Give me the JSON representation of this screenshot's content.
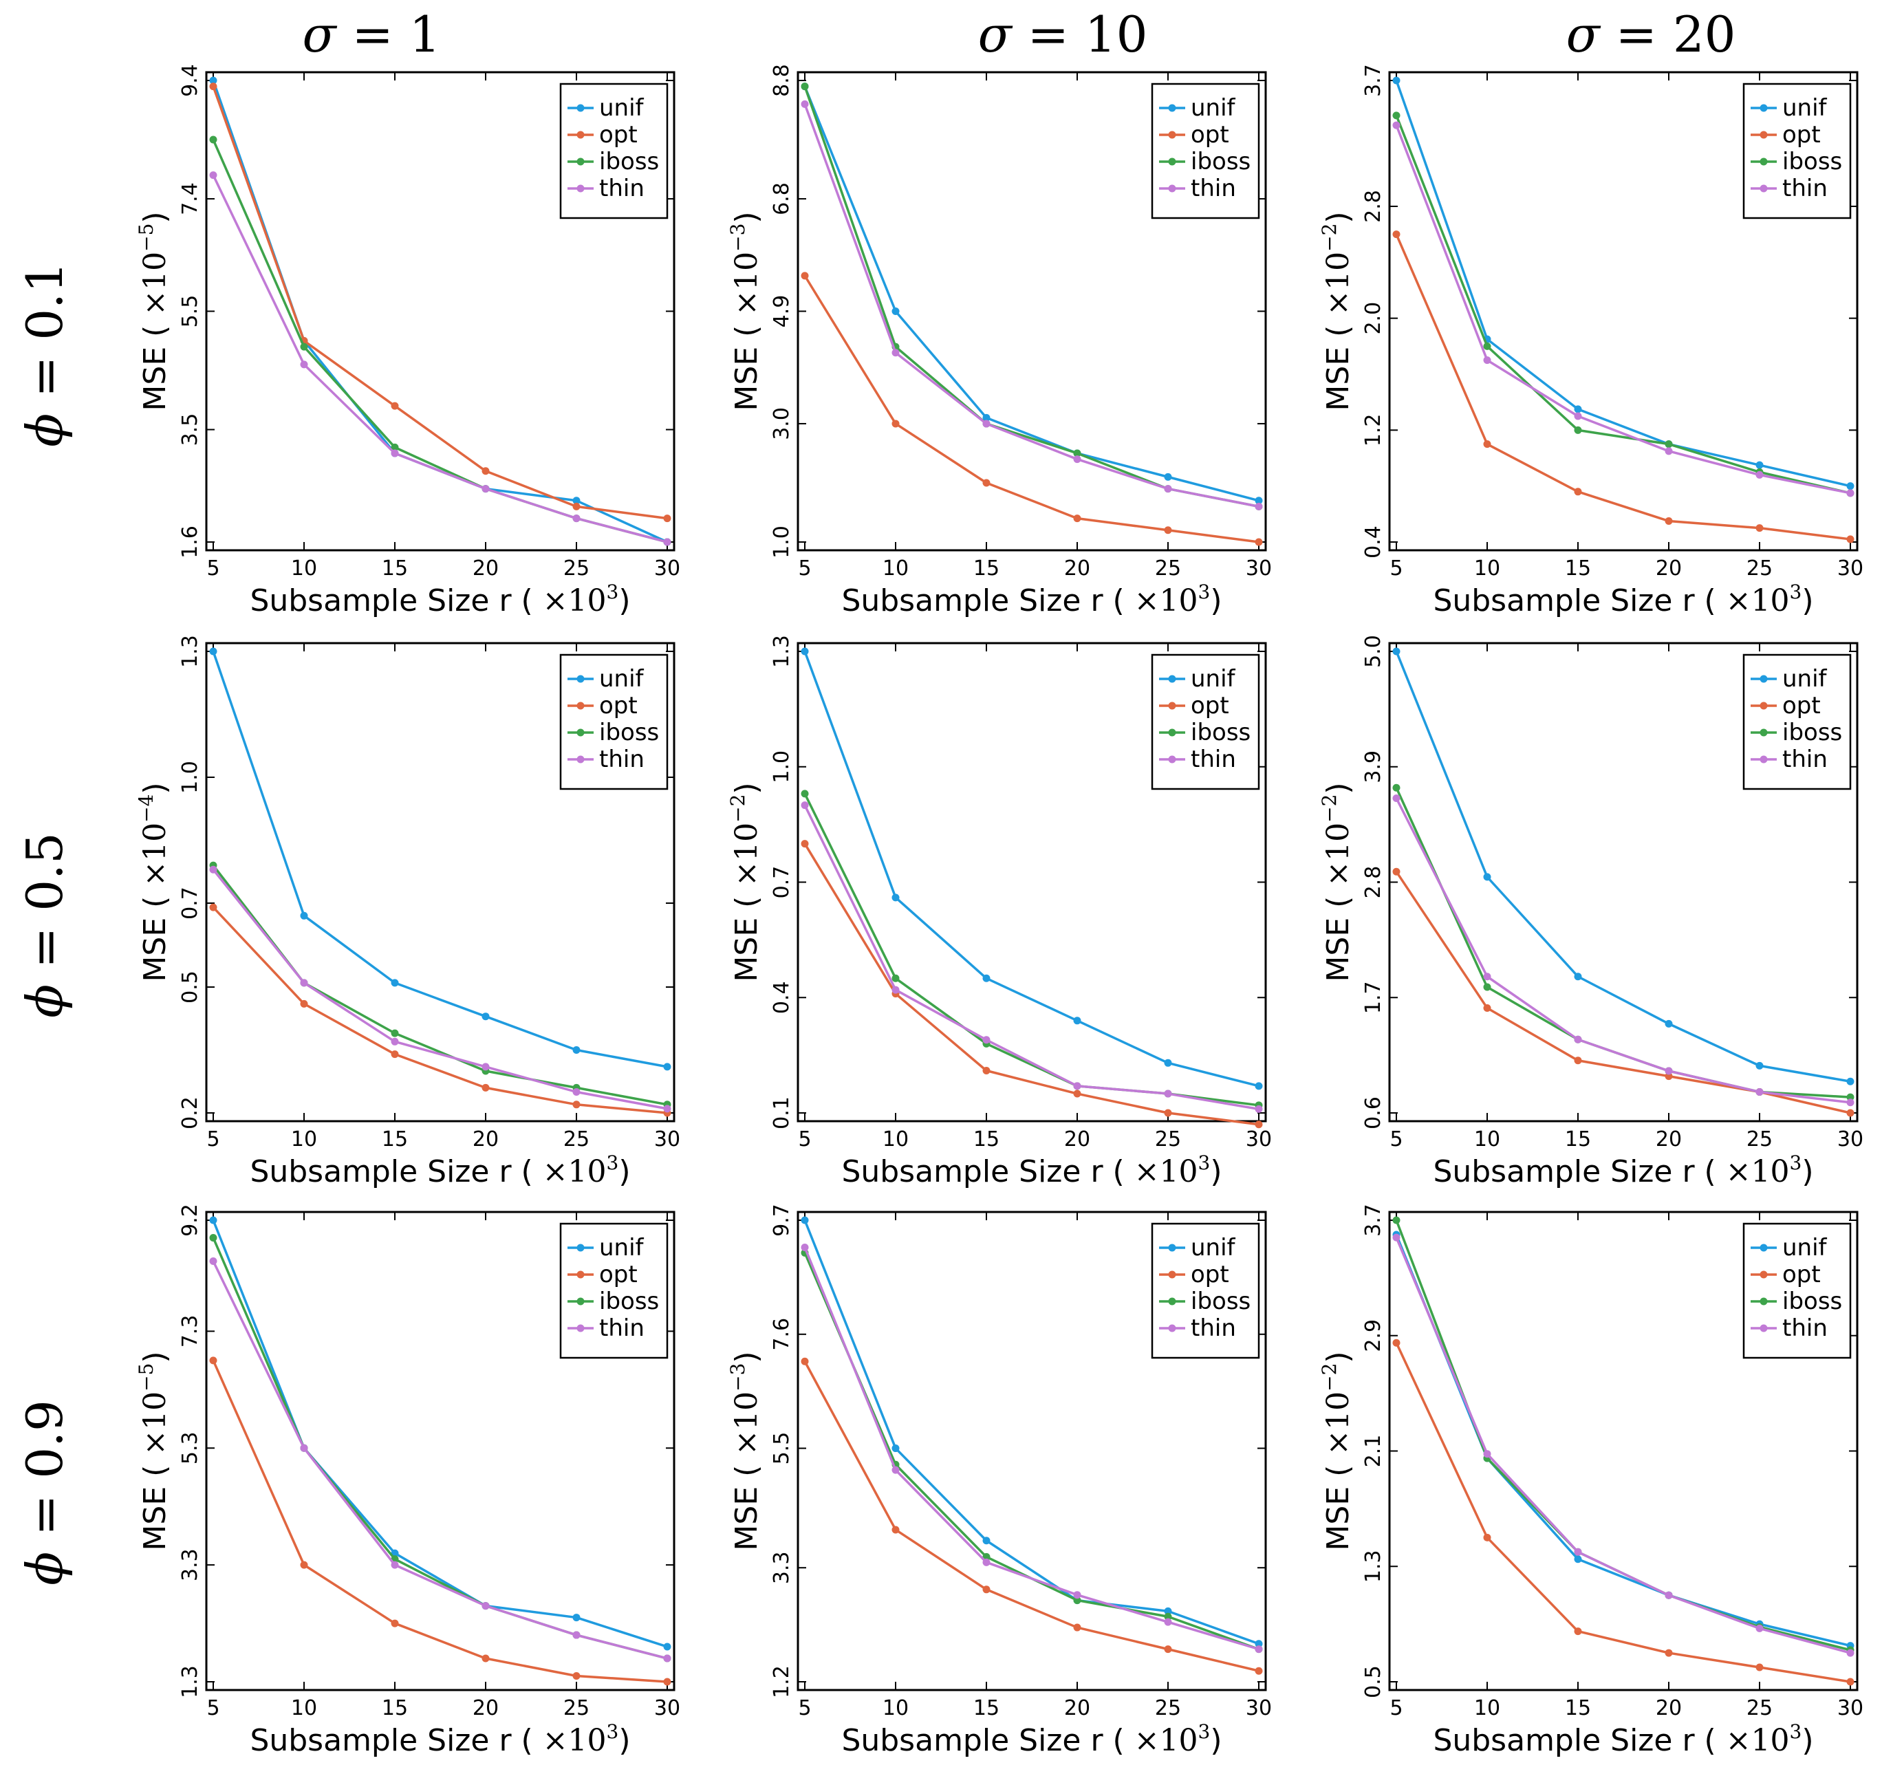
{
  "col_labels": [
    {
      "sym": "σ",
      "rest": " = 1"
    },
    {
      "sym": "σ",
      "rest": " = 10"
    },
    {
      "sym": "σ",
      "rest": " = 20"
    }
  ],
  "row_labels": [
    {
      "sym": "ϕ",
      "rest": " = 0.1"
    },
    {
      "sym": "ϕ",
      "rest": " = 0.5"
    },
    {
      "sym": "ϕ",
      "rest": " = 0.9"
    }
  ],
  "series_colors": {
    "unif": "#1f9bdf",
    "opt": "#e0663f",
    "iboss": "#3da34a",
    "thin": "#c17ad6"
  },
  "legend": [
    "unif",
    "opt",
    "iboss",
    "thin"
  ],
  "chart_data": [
    {
      "type": "line",
      "row": 0,
      "col": 0,
      "xlabel": "Subsample Size r (×10³)",
      "ylabel": "MSE (×10⁻⁵)",
      "ylabel_main": "MSE",
      "ylabel_exp": "-5",
      "x": [
        5,
        10,
        15,
        20,
        25,
        30
      ],
      "xticks": [
        5,
        10,
        15,
        20,
        25,
        30
      ],
      "yticks": [
        "1.6",
        "3.5",
        "5.5",
        "7.4",
        "9.4"
      ],
      "ylim": [
        1.6,
        9.4
      ],
      "series": [
        {
          "name": "unif",
          "values": [
            9.4,
            5.0,
            3.1,
            2.5,
            2.3,
            1.6
          ]
        },
        {
          "name": "opt",
          "values": [
            9.3,
            5.0,
            3.9,
            2.8,
            2.2,
            2.0
          ]
        },
        {
          "name": "iboss",
          "values": [
            8.4,
            4.9,
            3.2,
            2.5,
            2.0,
            1.6
          ]
        },
        {
          "name": "thin",
          "values": [
            7.8,
            4.6,
            3.1,
            2.5,
            2.0,
            1.6
          ]
        }
      ]
    },
    {
      "type": "line",
      "row": 0,
      "col": 1,
      "xlabel": "Subsample Size r (×10³)",
      "ylabel": "MSE (×10⁻³)",
      "ylabel_main": "MSE",
      "ylabel_exp": "-3",
      "x": [
        5,
        10,
        15,
        20,
        25,
        30
      ],
      "xticks": [
        5,
        10,
        15,
        20,
        25,
        30
      ],
      "yticks": [
        "1.0",
        "3.0",
        "4.9",
        "6.8",
        "8.8"
      ],
      "ylim": [
        1.0,
        8.8
      ],
      "series": [
        {
          "name": "unif",
          "values": [
            8.7,
            4.9,
            3.1,
            2.5,
            2.1,
            1.7
          ]
        },
        {
          "name": "opt",
          "values": [
            5.5,
            3.0,
            2.0,
            1.4,
            1.2,
            1.0
          ]
        },
        {
          "name": "iboss",
          "values": [
            8.7,
            4.3,
            3.0,
            2.5,
            1.9,
            1.6
          ]
        },
        {
          "name": "thin",
          "values": [
            8.4,
            4.2,
            3.0,
            2.4,
            1.9,
            1.6
          ]
        }
      ]
    },
    {
      "type": "line",
      "row": 0,
      "col": 2,
      "xlabel": "Subsample Size r (×10³)",
      "ylabel": "MSE (×10⁻²)",
      "ylabel_main": "MSE",
      "ylabel_exp": "-2",
      "x": [
        5,
        10,
        15,
        20,
        25,
        30
      ],
      "xticks": [
        5,
        10,
        15,
        20,
        25,
        30
      ],
      "yticks": [
        "0.4",
        "1.2",
        "2.0",
        "2.8",
        "3.7"
      ],
      "ylim": [
        0.4,
        3.7
      ],
      "series": [
        {
          "name": "unif",
          "values": [
            3.7,
            1.85,
            1.35,
            1.1,
            0.95,
            0.8
          ]
        },
        {
          "name": "opt",
          "values": [
            2.6,
            1.1,
            0.76,
            0.55,
            0.5,
            0.42
          ]
        },
        {
          "name": "iboss",
          "values": [
            3.45,
            1.8,
            1.2,
            1.1,
            0.9,
            0.75
          ]
        },
        {
          "name": "thin",
          "values": [
            3.38,
            1.7,
            1.3,
            1.05,
            0.88,
            0.75
          ]
        }
      ]
    },
    {
      "type": "line",
      "row": 1,
      "col": 0,
      "xlabel": "Subsample Size r (×10³)",
      "ylabel": "MSE (×10⁻⁴)",
      "ylabel_main": "MSE",
      "ylabel_exp": "-4",
      "x": [
        5,
        10,
        15,
        20,
        25,
        30
      ],
      "xticks": [
        5,
        10,
        15,
        20,
        25,
        30
      ],
      "yticks": [
        "0.2",
        "0.5",
        "0.7",
        "1.0",
        "1.3"
      ],
      "ylim": [
        0.2,
        1.3
      ],
      "series": [
        {
          "name": "unif",
          "values": [
            1.3,
            0.67,
            0.51,
            0.43,
            0.35,
            0.31
          ]
        },
        {
          "name": "opt",
          "values": [
            0.69,
            0.46,
            0.34,
            0.26,
            0.22,
            0.2
          ]
        },
        {
          "name": "iboss",
          "values": [
            0.79,
            0.51,
            0.39,
            0.3,
            0.26,
            0.22
          ]
        },
        {
          "name": "thin",
          "values": [
            0.78,
            0.51,
            0.37,
            0.31,
            0.25,
            0.21
          ]
        }
      ]
    },
    {
      "type": "line",
      "row": 1,
      "col": 1,
      "xlabel": "Subsample Size r (×10³)",
      "ylabel": "MSE (×10⁻²)",
      "ylabel_main": "MSE",
      "ylabel_exp": "-2",
      "x": [
        5,
        10,
        15,
        20,
        25,
        30
      ],
      "xticks": [
        5,
        10,
        15,
        20,
        25,
        30
      ],
      "yticks": [
        "0.1",
        "0.4",
        "0.7",
        "1.0",
        "1.3"
      ],
      "ylim": [
        0.1,
        1.3
      ],
      "series": [
        {
          "name": "unif",
          "values": [
            1.3,
            0.66,
            0.45,
            0.34,
            0.23,
            0.17
          ]
        },
        {
          "name": "opt",
          "values": [
            0.8,
            0.41,
            0.21,
            0.15,
            0.1,
            0.07
          ]
        },
        {
          "name": "iboss",
          "values": [
            0.93,
            0.45,
            0.28,
            0.17,
            0.15,
            0.12
          ]
        },
        {
          "name": "thin",
          "values": [
            0.9,
            0.42,
            0.29,
            0.17,
            0.15,
            0.11
          ]
        }
      ]
    },
    {
      "type": "line",
      "row": 1,
      "col": 2,
      "xlabel": "Subsample Size r (×10³)",
      "ylabel": "MSE (×10⁻²)",
      "ylabel_main": "MSE",
      "ylabel_exp": "-2",
      "x": [
        5,
        10,
        15,
        20,
        25,
        30
      ],
      "xticks": [
        5,
        10,
        15,
        20,
        25,
        30
      ],
      "yticks": [
        "0.6",
        "1.7",
        "2.8",
        "3.9",
        "5.0"
      ],
      "ylim": [
        0.6,
        5.0
      ],
      "series": [
        {
          "name": "unif",
          "values": [
            5.0,
            2.85,
            1.9,
            1.45,
            1.05,
            0.9
          ]
        },
        {
          "name": "opt",
          "values": [
            2.9,
            1.6,
            1.1,
            0.95,
            0.8,
            0.6
          ]
        },
        {
          "name": "iboss",
          "values": [
            3.7,
            1.8,
            1.3,
            1.0,
            0.8,
            0.75
          ]
        },
        {
          "name": "thin",
          "values": [
            3.6,
            1.9,
            1.3,
            1.0,
            0.8,
            0.7
          ]
        }
      ]
    },
    {
      "type": "line",
      "row": 2,
      "col": 0,
      "xlabel": "Subsample Size r (×10³)",
      "ylabel": "MSE (×10⁻⁵)",
      "ylabel_main": "MSE",
      "ylabel_exp": "-5",
      "x": [
        5,
        10,
        15,
        20,
        25,
        30
      ],
      "xticks": [
        5,
        10,
        15,
        20,
        25,
        30
      ],
      "yticks": [
        "1.3",
        "3.3",
        "5.3",
        "7.3",
        "9.2"
      ],
      "ylim": [
        1.3,
        9.2
      ],
      "series": [
        {
          "name": "unif",
          "values": [
            9.2,
            5.3,
            3.5,
            2.6,
            2.4,
            1.9
          ]
        },
        {
          "name": "opt",
          "values": [
            6.8,
            3.3,
            2.3,
            1.7,
            1.4,
            1.3
          ]
        },
        {
          "name": "iboss",
          "values": [
            8.9,
            5.3,
            3.4,
            2.6,
            2.1,
            1.7
          ]
        },
        {
          "name": "thin",
          "values": [
            8.5,
            5.3,
            3.3,
            2.6,
            2.1,
            1.7
          ]
        }
      ]
    },
    {
      "type": "line",
      "row": 2,
      "col": 1,
      "xlabel": "Subsample Size r (×10³)",
      "ylabel": "MSE (×10⁻³)",
      "ylabel_main": "MSE",
      "ylabel_exp": "-3",
      "x": [
        5,
        10,
        15,
        20,
        25,
        30
      ],
      "xticks": [
        5,
        10,
        15,
        20,
        25,
        30
      ],
      "yticks": [
        "1.2",
        "3.3",
        "5.5",
        "7.6",
        "9.7"
      ],
      "ylim": [
        1.2,
        9.7
      ],
      "series": [
        {
          "name": "unif",
          "values": [
            9.7,
            5.5,
            3.8,
            2.7,
            2.5,
            1.9
          ]
        },
        {
          "name": "opt",
          "values": [
            7.1,
            4.0,
            2.9,
            2.2,
            1.8,
            1.4
          ]
        },
        {
          "name": "iboss",
          "values": [
            9.1,
            5.2,
            3.5,
            2.7,
            2.4,
            1.8
          ]
        },
        {
          "name": "thin",
          "values": [
            9.2,
            5.1,
            3.4,
            2.8,
            2.3,
            1.8
          ]
        }
      ]
    },
    {
      "type": "line",
      "row": 2,
      "col": 2,
      "xlabel": "Subsample Size r (×10³)",
      "ylabel": "MSE (×10⁻²)",
      "ylabel_main": "MSE",
      "ylabel_exp": "-2",
      "x": [
        5,
        10,
        15,
        20,
        25,
        30
      ],
      "xticks": [
        5,
        10,
        15,
        20,
        25,
        30
      ],
      "yticks": [
        "0.5",
        "1.3",
        "2.1",
        "2.9",
        "3.7"
      ],
      "ylim": [
        0.5,
        3.7
      ],
      "series": [
        {
          "name": "unif",
          "values": [
            3.6,
            2.05,
            1.35,
            1.1,
            0.9,
            0.75
          ]
        },
        {
          "name": "opt",
          "values": [
            2.85,
            1.5,
            0.85,
            0.7,
            0.6,
            0.5
          ]
        },
        {
          "name": "iboss",
          "values": [
            3.7,
            2.05,
            1.4,
            1.1,
            0.88,
            0.72
          ]
        },
        {
          "name": "thin",
          "values": [
            3.58,
            2.08,
            1.4,
            1.1,
            0.87,
            0.7
          ]
        }
      ]
    }
  ]
}
